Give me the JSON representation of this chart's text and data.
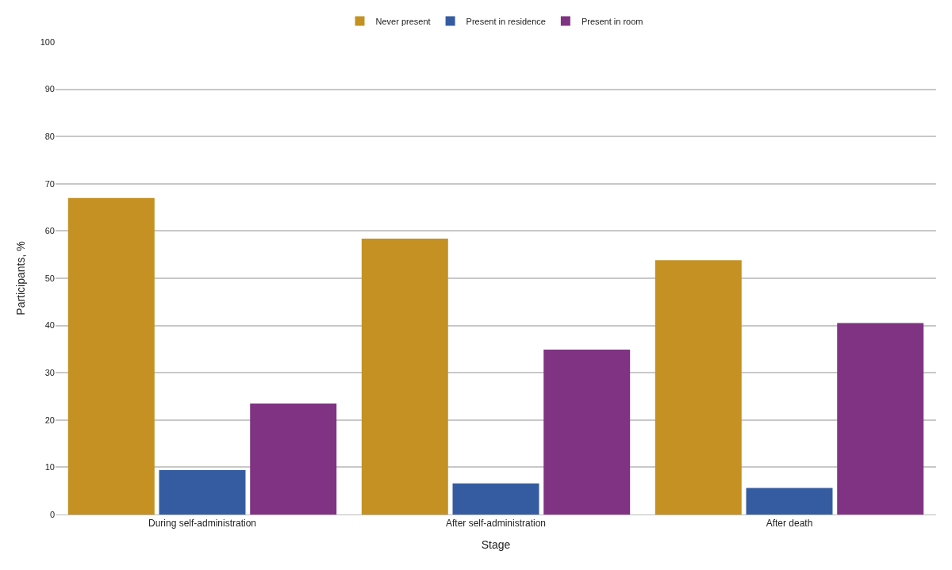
{
  "chart_data": {
    "type": "bar",
    "xlabel": "Stage",
    "ylabel": "Participants, %",
    "categories": [
      "During self-administration",
      "After self-administration",
      "After death"
    ],
    "series": [
      {
        "name": "Never present",
        "color": "#c49122",
        "values": [
          67.0,
          58.4,
          53.8
        ]
      },
      {
        "name": "Present in residence",
        "color": "#355ca0",
        "values": [
          9.4,
          6.6,
          5.6
        ]
      },
      {
        "name": "Present in room",
        "color": "#803383",
        "values": [
          23.5,
          34.9,
          40.5
        ]
      }
    ],
    "ylim": [
      0,
      100
    ],
    "yticks": [
      0,
      10,
      20,
      30,
      40,
      50,
      60,
      70,
      80,
      90,
      100
    ],
    "grid": "y",
    "legend": "top"
  }
}
